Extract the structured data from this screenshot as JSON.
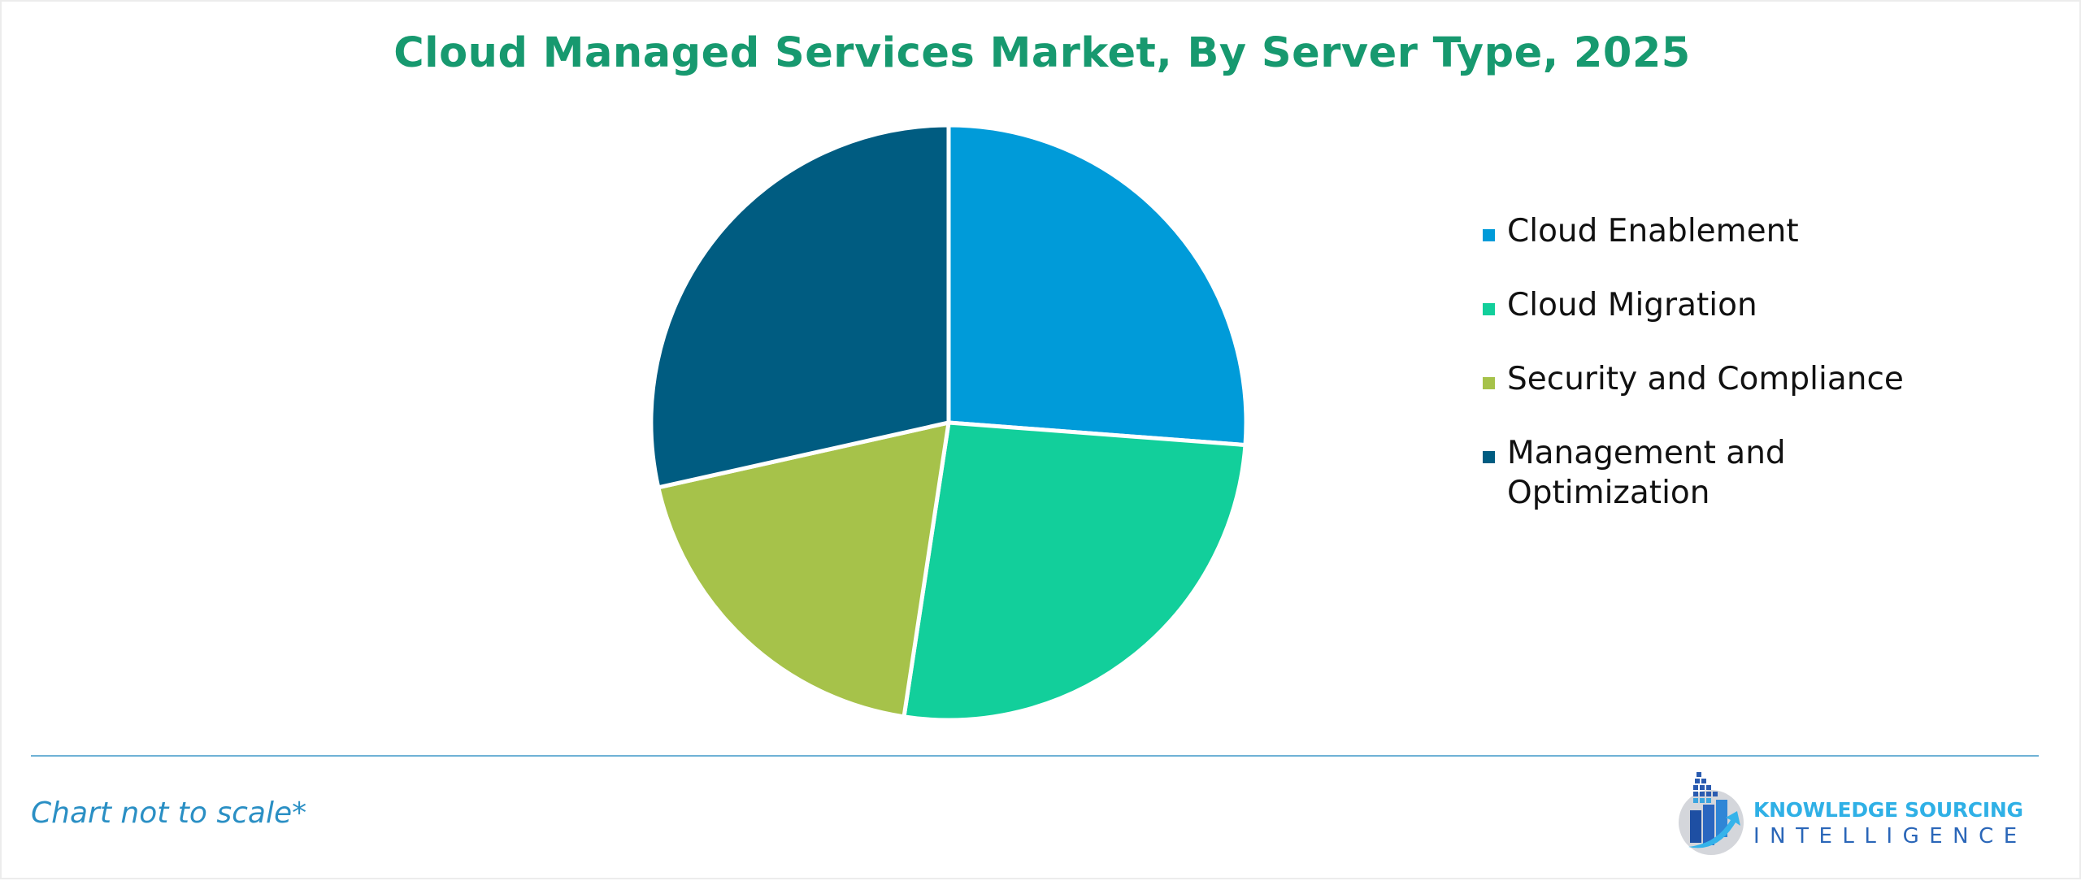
{
  "title": "Cloud Managed Services Market, By Server Type, 2025",
  "footnote": "Chart not to scale*",
  "logo": {
    "line1": "KNOWLEDGE SOURCING",
    "line2": "INTELLIGENCE"
  },
  "legend": [
    {
      "label": "Cloud Enablement",
      "color": "#009bd9"
    },
    {
      "label": "Cloud Migration",
      "color": "#12cf9b"
    },
    {
      "label": "Security and Compliance",
      "color": "#a6c24a"
    },
    {
      "label": "Management and Optimization",
      "color": "#005c81"
    }
  ],
  "chart_data": {
    "type": "pie",
    "title": "Cloud Managed Services Market, By Server Type, 2025",
    "categories": [
      "Cloud Enablement",
      "Cloud Migration",
      "Security and Compliance",
      "Management and Optimization"
    ],
    "values": [
      26.2,
      26.2,
      19.1,
      28.5
    ],
    "unit": "% share (estimated from slice angles)",
    "colors": [
      "#009bd9",
      "#12cf9b",
      "#a6c24a",
      "#005c81"
    ],
    "start_angle": "12 o'clock, clockwise",
    "legend_position": "right",
    "note": "Chart not to scale*"
  }
}
